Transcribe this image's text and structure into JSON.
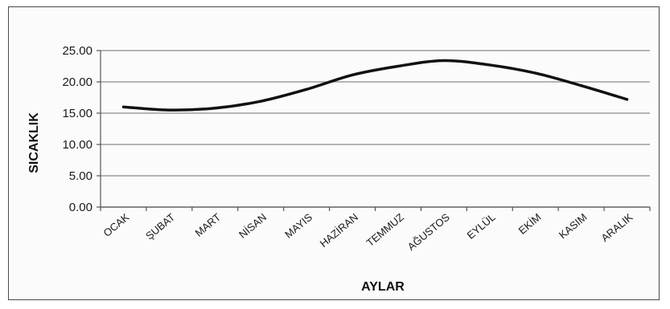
{
  "chart_data": {
    "type": "line",
    "xlabel": "AYLAR",
    "ylabel": "SICAKLIK",
    "categories": [
      "OCAK",
      "ŞUBAT",
      "MART",
      "NİSAN",
      "MAYIS",
      "HAZİRAN",
      "TEMMUZ",
      "AĞUSTOS",
      "EYLÜL",
      "EKİM",
      "KASIM",
      "ARALIK"
    ],
    "series": [
      {
        "values": [
          16.0,
          15.5,
          15.8,
          16.9,
          18.8,
          21.1,
          22.5,
          23.4,
          22.7,
          21.4,
          19.4,
          17.2
        ]
      }
    ],
    "ylim": [
      0,
      25
    ],
    "yticks": [
      "0.00",
      "5.00",
      "10.00",
      "15.00",
      "20.00",
      "25.00"
    ],
    "grid": true,
    "legend": "none",
    "line_color": "#111111"
  }
}
